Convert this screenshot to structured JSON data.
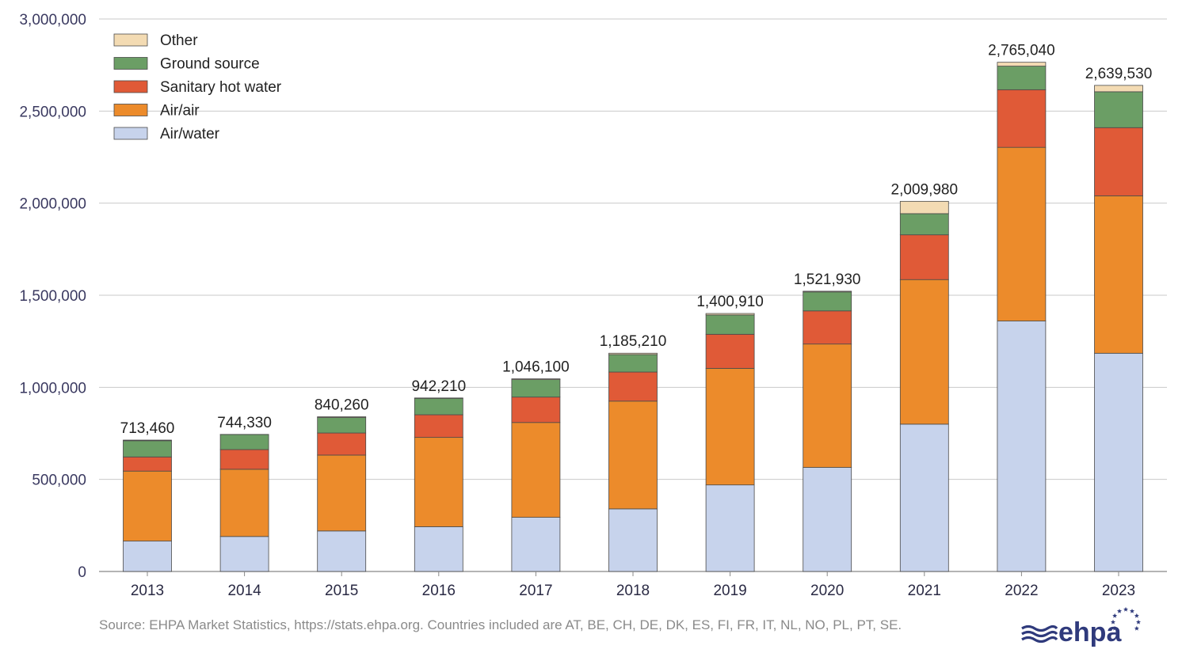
{
  "chart_data": {
    "type": "bar",
    "stacked": true,
    "categories": [
      "2013",
      "2014",
      "2015",
      "2016",
      "2017",
      "2018",
      "2019",
      "2020",
      "2021",
      "2022",
      "2023"
    ],
    "series": [
      {
        "name": "Air/water",
        "color": "#c7d3ec",
        "values": [
          165000,
          190000,
          220000,
          243000,
          294000,
          340000,
          470000,
          565000,
          800000,
          1360000,
          1185000
        ]
      },
      {
        "name": "Air/air",
        "color": "#ec8b2b",
        "values": [
          380000,
          365000,
          412000,
          485000,
          515000,
          585000,
          633000,
          670000,
          785000,
          943000,
          855000
        ]
      },
      {
        "name": "Sanitary hot water",
        "color": "#e05a37",
        "values": [
          77000,
          107000,
          120000,
          123000,
          138000,
          158000,
          185000,
          180000,
          243000,
          313000,
          370000
        ]
      },
      {
        "name": "Ground source",
        "color": "#6b9e65",
        "values": [
          88000,
          82000,
          84000,
          89000,
          95000,
          95000,
          105000,
          103000,
          115000,
          128000,
          195000
        ]
      },
      {
        "name": "Other",
        "color": "#f3dbb3",
        "values": [
          3460,
          330,
          4260,
          2210,
          4100,
          7210,
          7910,
          3930,
          66980,
          21040,
          34530
        ]
      }
    ],
    "totals": [
      "713,460",
      "744,330",
      "840,260",
      "942,210",
      "1,046,100",
      "1,185,210",
      "1,400,910",
      "1,521,930",
      "2,009,980",
      "2,765,040",
      "2,639,530"
    ],
    "ylim": [
      0,
      3000000
    ],
    "yticks": [
      0,
      500000,
      1000000,
      1500000,
      2000000,
      2500000,
      3000000
    ],
    "ytick_labels": [
      "0",
      "500,000",
      "1,000,000",
      "1,500,000",
      "2,000,000",
      "2,500,000",
      "3,000,000"
    ],
    "legend_order": [
      "Other",
      "Ground source",
      "Sanitary hot water",
      "Air/air",
      "Air/water"
    ],
    "legend_position": "top-left",
    "grid": "horizontal",
    "title": "",
    "xlabel": "",
    "ylabel": ""
  },
  "source_note": "Source: EHPA Market Statistics, https://stats.ehpa.org. Countries included are AT, BE, CH, DE, DK, ES, FI, FR, IT, NL, NO, PL, PT, SE.",
  "logo": {
    "text": "ehpa",
    "colors": {
      "primary": "#2f3a7c"
    },
    "icon": "eu-stars-logo"
  }
}
